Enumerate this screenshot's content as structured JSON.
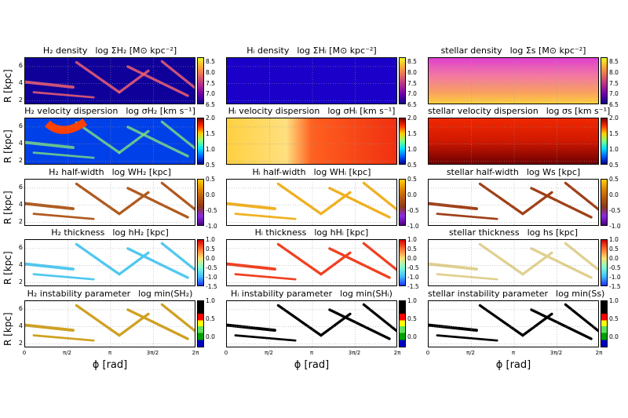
{
  "chart_data": {
    "type": "heatmap",
    "layout": "5 rows x 3 columns of phi-R maps",
    "columns": [
      "H2",
      "HI",
      "stellar"
    ],
    "rows": [
      {
        "quantity": "density",
        "titles": [
          {
            "name": "H₂ density",
            "expr": "log ΣH₂ [M⊙ kpc⁻²]"
          },
          {
            "name": "Hᵢ density",
            "expr": "log ΣHᵢ [M⊙ kpc⁻²]"
          },
          {
            "name": "stellar density",
            "expr": "log Σs [M⊙ kpc⁻²]"
          }
        ],
        "colormap": "plasma-like (black-blue-magenta-orange-yellow)",
        "clim": [
          6.5,
          8.7
        ],
        "cbar_ticks": [
          "8.5",
          "8.0",
          "7.5",
          "7.0",
          "6.5"
        ]
      },
      {
        "quantity": "velocity dispersion",
        "titles": [
          {
            "name": "H₂ velocity dispersion",
            "expr": "log σH₂ [km s⁻¹]"
          },
          {
            "name": "Hᵢ velocity dispersion",
            "expr": "log σHᵢ [km s⁻¹]"
          },
          {
            "name": "stellar velocity dispersion",
            "expr": "log σs [km s⁻¹]"
          }
        ],
        "colormap": "jet-like (blue-cyan-yellow-red)",
        "clim": [
          0.5,
          2.0
        ],
        "cbar_ticks": [
          "2.0",
          "1.5",
          "1.0",
          "0.5"
        ]
      },
      {
        "quantity": "half-width",
        "titles": [
          {
            "name": "H₂ half-width",
            "expr": "log WH₂ [kpc]"
          },
          {
            "name": "Hᵢ half-width",
            "expr": "log WHᵢ [kpc]"
          },
          {
            "name": "stellar half-width",
            "expr": "log Ws [kpc]"
          }
        ],
        "colormap": "purple-orange-yellow",
        "clim": [
          -1.0,
          0.5
        ],
        "cbar_ticks": [
          "0.5",
          "0.0",
          "-0.5",
          "-1.0"
        ]
      },
      {
        "quantity": "thickness",
        "titles": [
          {
            "name": "H₂ thickness",
            "expr": "log hH₂ [kpc]"
          },
          {
            "name": "Hᵢ thickness",
            "expr": "log hHᵢ [kpc]"
          },
          {
            "name": "stellar thickness",
            "expr": "log hs [kpc]"
          }
        ],
        "colormap": "blue-cyan-yellow-red",
        "clim": [
          -1.5,
          1.0
        ],
        "cbar_ticks": [
          "1.0",
          "0.5",
          "0.0",
          "-0.5",
          "-1.0",
          "-1.5"
        ]
      },
      {
        "quantity": "instability parameter",
        "titles": [
          {
            "name": "H₂ instability parameter",
            "expr": "log min(SH₂)"
          },
          {
            "name": "Hᵢ instability parameter",
            "expr": "log min(SHᵢ)"
          },
          {
            "name": "stellar instability parameter",
            "expr": "log min(Ss)"
          }
        ],
        "colormap": "discrete (blue-green-yellow-red-black)",
        "clim": [
          -0.3,
          1.0
        ],
        "cbar_ticks": [
          "1.0",
          "0.5",
          "0.0"
        ]
      }
    ],
    "x_axis": {
      "label": "ϕ [rad]",
      "range": [
        0,
        6.283
      ],
      "ticks": [
        "0",
        "π/2",
        "π",
        "3π/2",
        "2π"
      ]
    },
    "y_axis": {
      "label": "R [kpc]",
      "range": [
        1.5,
        7
      ],
      "ticks": [
        "6",
        "4",
        "2"
      ]
    },
    "grid": true
  }
}
